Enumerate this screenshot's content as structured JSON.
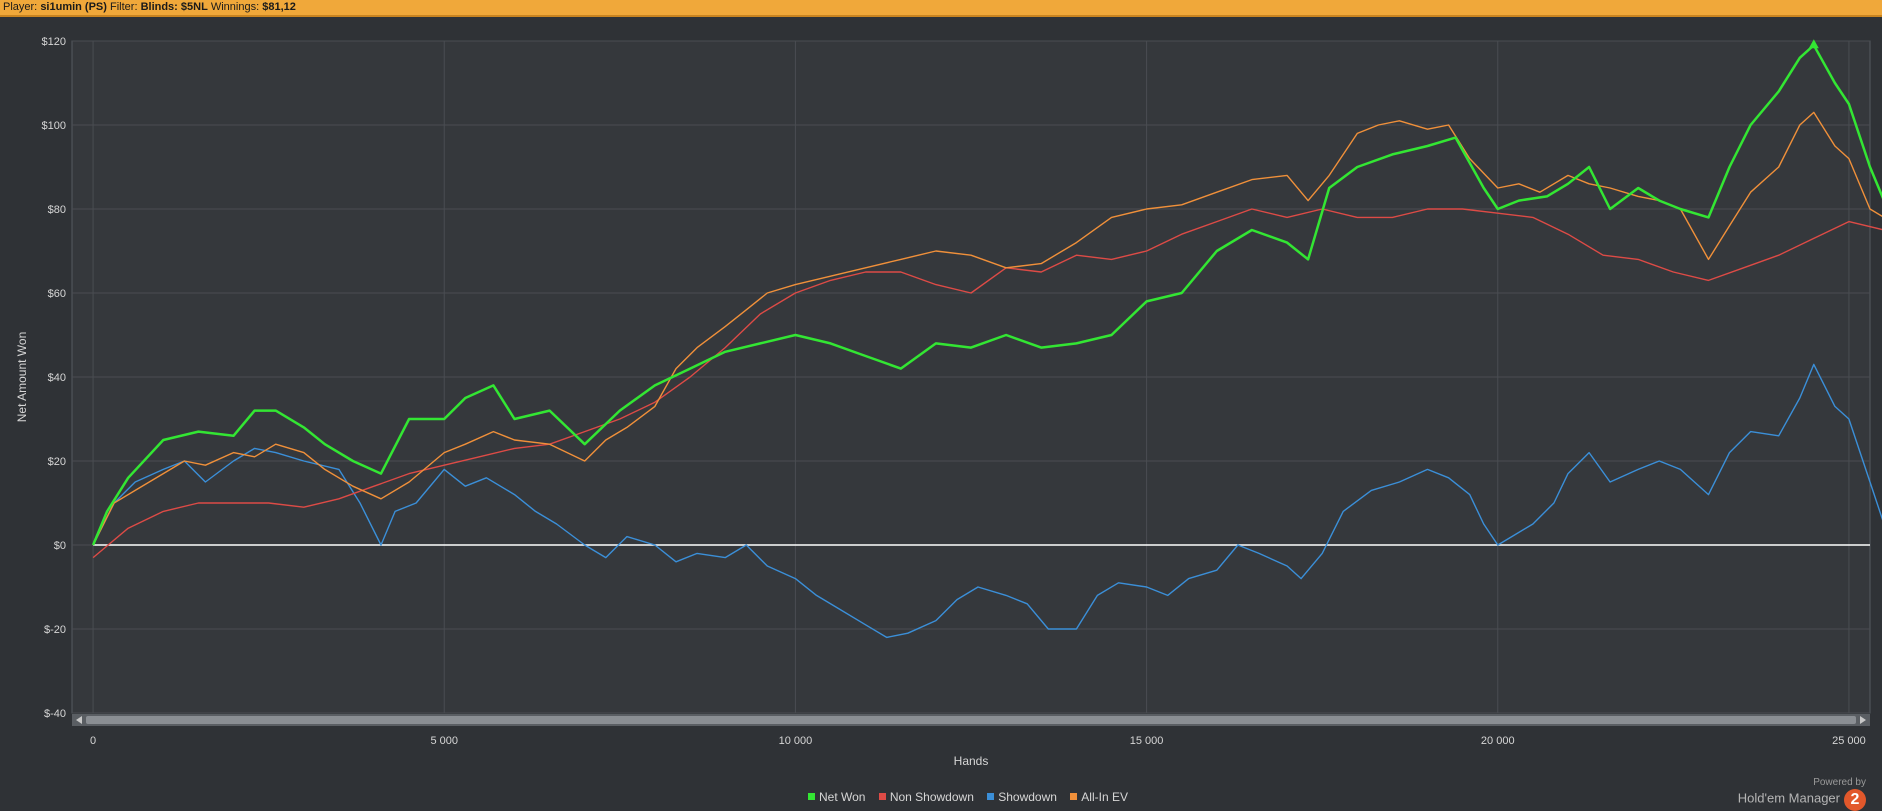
{
  "header": {
    "player_label": "Player:",
    "player_value": "si1umin (PS)",
    "filter_label": "Filter:",
    "filter_value": "Blinds: $5NL",
    "winnings_label": "Winnings:",
    "winnings_value": "$81,12"
  },
  "brand": {
    "powered_by": "Powered by",
    "name": "Hold'em Manager",
    "logo_text": "2"
  },
  "colors": {
    "background": "#2f3236",
    "plot_bg": "#35383c",
    "grid": "#4a4d52",
    "net_won": "#33e633",
    "non_showdown": "#dd4b46",
    "showdown": "#3b8fd8",
    "all_in_ev": "#f0903a",
    "zero_line": "#ffffff"
  },
  "chart_data": {
    "type": "line",
    "title": "",
    "xlabel": "Hands",
    "ylabel": "Net Amount Won",
    "xlim": [
      -300,
      25300
    ],
    "ylim": [
      -40,
      120
    ],
    "x_ticks": [
      0,
      5000,
      10000,
      15000,
      20000,
      25000
    ],
    "x_tick_labels": [
      "0",
      "5 000",
      "10 000",
      "15 000",
      "20 000",
      "25 000"
    ],
    "y_ticks": [
      -40,
      -20,
      0,
      20,
      40,
      60,
      80,
      100,
      120
    ],
    "y_tick_labels": [
      "$-40",
      "$-20",
      "$0",
      "$20",
      "$40",
      "$60",
      "$80",
      "$100",
      "$120"
    ],
    "grid": true,
    "legend_position": "bottom-center",
    "max_marker": {
      "series": "Net Won",
      "x": 24500,
      "y": 119
    },
    "series": [
      {
        "name": "Net Won",
        "color": "#33e633",
        "x": [
          0,
          200,
          500,
          1000,
          1500,
          2000,
          2300,
          2600,
          3000,
          3300,
          3700,
          4100,
          4500,
          5000,
          5300,
          5700,
          6000,
          6500,
          7000,
          7500,
          8000,
          8500,
          9000,
          9500,
          10000,
          10500,
          11000,
          11500,
          12000,
          12500,
          13000,
          13500,
          14000,
          14500,
          15000,
          15500,
          16000,
          16500,
          17000,
          17300,
          17600,
          18000,
          18500,
          19000,
          19400,
          19800,
          20000,
          20300,
          20700,
          21000,
          21300,
          21600,
          22000,
          22300,
          22600,
          23000,
          23300,
          23600,
          24000,
          24300,
          24500,
          24800,
          25000,
          25300,
          25500
        ],
        "y": [
          0,
          8,
          16,
          25,
          27,
          26,
          32,
          32,
          28,
          24,
          20,
          17,
          30,
          30,
          35,
          38,
          30,
          32,
          24,
          32,
          38,
          42,
          46,
          48,
          50,
          48,
          45,
          42,
          48,
          47,
          50,
          47,
          48,
          50,
          58,
          60,
          70,
          75,
          72,
          68,
          85,
          90,
          93,
          95,
          97,
          85,
          80,
          82,
          83,
          86,
          90,
          80,
          85,
          82,
          80,
          78,
          90,
          100,
          108,
          116,
          119,
          110,
          105,
          90,
          82
        ]
      },
      {
        "name": "Non Showdown",
        "color": "#dd4b46",
        "x": [
          0,
          500,
          1000,
          1500,
          2000,
          2500,
          3000,
          3500,
          4000,
          4500,
          5000,
          5500,
          6000,
          6500,
          7000,
          7500,
          8000,
          8500,
          9000,
          9500,
          10000,
          10500,
          11000,
          11500,
          12000,
          12500,
          13000,
          13500,
          14000,
          14500,
          15000,
          15500,
          16000,
          16500,
          17000,
          17500,
          18000,
          18500,
          19000,
          19500,
          20000,
          20500,
          21000,
          21500,
          22000,
          22500,
          23000,
          23500,
          24000,
          24500,
          25000,
          25500
        ],
        "y": [
          -3,
          4,
          8,
          10,
          10,
          10,
          9,
          11,
          14,
          17,
          19,
          21,
          23,
          24,
          27,
          30,
          34,
          40,
          47,
          55,
          60,
          63,
          65,
          65,
          62,
          60,
          66,
          65,
          69,
          68,
          70,
          74,
          77,
          80,
          78,
          80,
          78,
          78,
          80,
          80,
          79,
          78,
          74,
          69,
          68,
          65,
          63,
          66,
          69,
          73,
          77,
          75
        ]
      },
      {
        "name": "Showdown",
        "color": "#3b8fd8",
        "x": [
          0,
          300,
          600,
          1000,
          1300,
          1600,
          2000,
          2300,
          2600,
          3000,
          3500,
          3800,
          4100,
          4300,
          4600,
          5000,
          5300,
          5600,
          6000,
          6300,
          6600,
          7000,
          7300,
          7600,
          8000,
          8300,
          8600,
          9000,
          9300,
          9600,
          10000,
          10300,
          10600,
          11000,
          11300,
          11600,
          12000,
          12300,
          12600,
          13000,
          13300,
          13600,
          14000,
          14300,
          14600,
          15000,
          15300,
          15600,
          16000,
          16300,
          16600,
          17000,
          17200,
          17500,
          17800,
          18200,
          18600,
          19000,
          19300,
          19600,
          19800,
          20000,
          20200,
          20500,
          20800,
          21000,
          21300,
          21600,
          22000,
          22300,
          22600,
          23000,
          23300,
          23600,
          24000,
          24300,
          24500,
          24800,
          25000,
          25300,
          25500
        ],
        "y": [
          0,
          10,
          15,
          18,
          20,
          15,
          20,
          23,
          22,
          20,
          18,
          10,
          0,
          8,
          10,
          18,
          14,
          16,
          12,
          8,
          5,
          0,
          -3,
          2,
          0,
          -4,
          -2,
          -3,
          0,
          -5,
          -8,
          -12,
          -15,
          -19,
          -22,
          -21,
          -18,
          -13,
          -10,
          -12,
          -14,
          -20,
          -20,
          -12,
          -9,
          -10,
          -12,
          -8,
          -6,
          0,
          -2,
          -5,
          -8,
          -2,
          8,
          13,
          15,
          18,
          16,
          12,
          5,
          0,
          2,
          5,
          10,
          17,
          22,
          15,
          18,
          20,
          18,
          12,
          22,
          27,
          26,
          35,
          43,
          33,
          30,
          15,
          5
        ]
      },
      {
        "name": "All-In EV",
        "color": "#f0903a",
        "x": [
          0,
          300,
          600,
          1000,
          1300,
          1600,
          2000,
          2300,
          2600,
          3000,
          3300,
          3700,
          4100,
          4500,
          5000,
          5300,
          5700,
          6000,
          6500,
          7000,
          7300,
          7600,
          8000,
          8300,
          8600,
          9000,
          9300,
          9600,
          10000,
          10500,
          11000,
          11500,
          12000,
          12500,
          13000,
          13500,
          14000,
          14500,
          15000,
          15500,
          16000,
          16500,
          17000,
          17300,
          17600,
          18000,
          18300,
          18600,
          19000,
          19300,
          19600,
          20000,
          20300,
          20600,
          21000,
          21300,
          21600,
          22000,
          22300,
          22600,
          23000,
          23300,
          23600,
          24000,
          24300,
          24500,
          24800,
          25000,
          25300,
          25500
        ],
        "y": [
          0,
          10,
          13,
          17,
          20,
          19,
          22,
          21,
          24,
          22,
          18,
          14,
          11,
          15,
          22,
          24,
          27,
          25,
          24,
          20,
          25,
          28,
          33,
          42,
          47,
          52,
          56,
          60,
          62,
          64,
          66,
          68,
          70,
          69,
          66,
          67,
          72,
          78,
          80,
          81,
          84,
          87,
          88,
          82,
          88,
          98,
          100,
          101,
          99,
          100,
          92,
          85,
          86,
          84,
          88,
          86,
          85,
          83,
          82,
          80,
          68,
          76,
          84,
          90,
          100,
          103,
          95,
          92,
          80,
          78
        ]
      }
    ]
  }
}
